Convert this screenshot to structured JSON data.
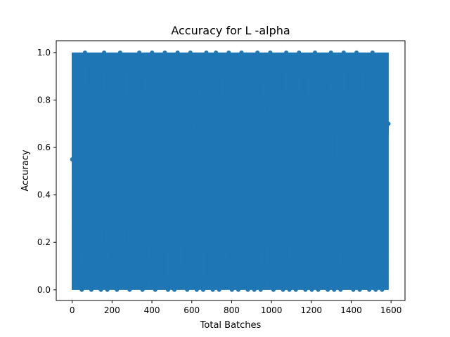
{
  "chart_data": {
    "type": "line",
    "title": "Accuracy for L -alpha",
    "xlabel": "Total Batches",
    "ylabel": "Accuracy",
    "xlim": [
      -80,
      1670
    ],
    "ylim": [
      -0.045,
      1.05
    ],
    "x_ticks": [
      0,
      200,
      400,
      600,
      800,
      1000,
      1200,
      1400,
      1600
    ],
    "y_ticks": [
      0.0,
      0.2,
      0.4,
      0.6,
      0.8,
      1.0
    ],
    "x_tick_labels": [
      "0",
      "200",
      "400",
      "600",
      "800",
      "1000",
      "1200",
      "1400",
      "1600"
    ],
    "y_tick_labels": [
      "0.0",
      "0.2",
      "0.4",
      "0.6",
      "0.8",
      "1.0"
    ],
    "grid": false,
    "legend": "none",
    "series": [
      {
        "color": "#1f77b4",
        "marker": "circle",
        "x_start": 0,
        "x_end": 1587,
        "x_step": 1,
        "values_sampled": [
          0.55,
          0.03,
          0.99,
          0.0,
          1.0,
          0.28,
          0.0,
          0.99,
          0.51,
          0.0,
          1.0,
          0.0,
          0.98,
          0.62,
          0.0,
          1.0,
          0.01,
          0.99,
          0.0,
          0.97,
          0.31,
          1.0,
          0.0,
          0.99,
          0.03,
          1.0,
          0.0,
          0.96,
          0.47,
          1.0,
          0.0,
          0.99,
          0.0,
          1.0,
          0.02,
          0.98,
          0.0,
          1.0,
          0.69,
          0.0,
          0.99,
          0.0,
          1.0,
          0.33,
          0.0,
          1.0,
          0.0,
          0.99,
          0.01,
          1.0,
          0.0,
          0.98,
          0.0,
          1.0,
          0.6,
          0.0,
          0.99,
          0.0,
          1.0,
          0.0,
          0.97,
          0.02,
          1.0,
          0.0,
          0.99,
          0.42,
          0.0,
          1.0,
          0.0,
          0.99,
          0.0,
          1.0,
          0.11,
          0.0,
          0.98,
          0.0,
          1.0,
          0.0,
          0.99,
          0.7,
          0.0,
          1.0,
          0.0,
          0.99,
          0.0,
          1.0,
          0.05,
          0.98,
          0.0,
          1.0,
          0.0,
          0.99,
          0.27,
          0.0,
          1.0,
          0.0,
          0.99,
          0.0,
          0.32,
          0.7
        ]
      }
    ]
  }
}
